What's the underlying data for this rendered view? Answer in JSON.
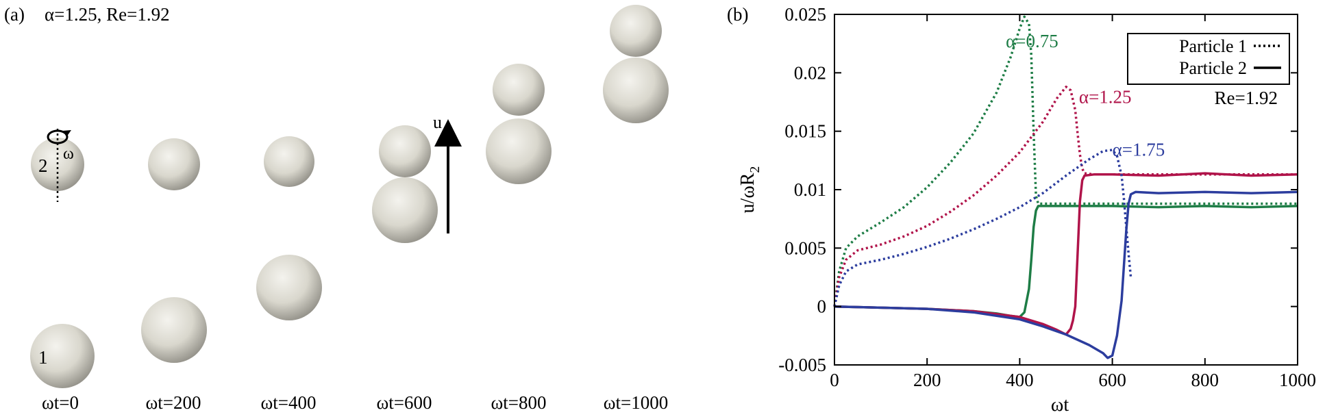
{
  "panel_a": {
    "label": "(a)",
    "params": "α=1.25, Re=1.92",
    "particle1_label": "1",
    "particle2_label": "2",
    "omega_label": "ω",
    "u_label": "u",
    "time_labels": [
      "ωt=0",
      "ωt=200",
      "ωt=400",
      "ωt=600",
      "ωt=800",
      "ωt=1000"
    ],
    "sphere_color": "#e4e2da"
  },
  "chart_data": {
    "type": "line",
    "label": "(b)",
    "xlabel": "ωt",
    "ylabel": "u/ωR",
    "ylabel_sub": "2",
    "xlim": [
      0,
      1000
    ],
    "ylim": [
      -0.005,
      0.025
    ],
    "xticks": [
      0,
      200,
      400,
      600,
      800,
      1000
    ],
    "yticks": [
      -0.005,
      0,
      0.005,
      0.01,
      0.015,
      0.02,
      0.025
    ],
    "ytick_labels": [
      "-0.005",
      "0",
      "0.005",
      "0.01",
      "0.015",
      "0.02",
      "0.025"
    ],
    "grid": false,
    "legend": {
      "placement": "top-right",
      "entries": [
        {
          "label": "Particle 1",
          "style": "dotted"
        },
        {
          "label": "Particle 2",
          "style": "solid"
        }
      ]
    },
    "annotation": "Re=1.92",
    "series": [
      {
        "name": "α=0.75",
        "color": "#1e7d46",
        "particle": 1,
        "style": "dotted",
        "x": [
          0,
          10,
          25,
          50,
          100,
          150,
          200,
          250,
          300,
          350,
          380,
          400,
          410,
          420,
          425,
          430,
          435,
          440,
          460,
          500,
          600,
          700,
          800,
          900,
          1000
        ],
        "y": [
          0.0,
          0.003,
          0.005,
          0.006,
          0.0072,
          0.0085,
          0.0102,
          0.0123,
          0.0148,
          0.0183,
          0.0213,
          0.0238,
          0.0248,
          0.0242,
          0.0215,
          0.015,
          0.0095,
          0.0088,
          0.0088,
          0.0088,
          0.0088,
          0.0088,
          0.0088,
          0.0088,
          0.0088
        ]
      },
      {
        "name": "α=0.75",
        "color": "#1e7d46",
        "particle": 2,
        "style": "solid",
        "x": [
          0,
          100,
          200,
          300,
          350,
          380,
          400,
          410,
          420,
          425,
          430,
          435,
          440,
          460,
          500,
          600,
          700,
          800,
          900,
          1000
        ],
        "y": [
          0.0,
          -0.0001,
          -0.0002,
          -0.0004,
          -0.0006,
          -0.0008,
          -0.0009,
          -0.0005,
          0.0015,
          0.004,
          0.0068,
          0.0082,
          0.0086,
          0.0086,
          0.0086,
          0.0086,
          0.0085,
          0.0086,
          0.0085,
          0.0086
        ]
      },
      {
        "name": "α=1.25",
        "color": "#b0144a",
        "particle": 1,
        "style": "dotted",
        "x": [
          0,
          10,
          25,
          50,
          100,
          150,
          200,
          250,
          300,
          350,
          400,
          450,
          480,
          500,
          510,
          520,
          525,
          530,
          535,
          540,
          560,
          600,
          700,
          800,
          900,
          1000
        ],
        "y": [
          0.0,
          0.0025,
          0.004,
          0.0048,
          0.0053,
          0.006,
          0.0069,
          0.0081,
          0.0095,
          0.0112,
          0.0132,
          0.0158,
          0.0178,
          0.0188,
          0.0185,
          0.0168,
          0.0148,
          0.013,
          0.0118,
          0.0114,
          0.0113,
          0.0113,
          0.0113,
          0.0113,
          0.0113,
          0.0113
        ]
      },
      {
        "name": "α=1.25",
        "color": "#b0144a",
        "particle": 2,
        "style": "solid",
        "x": [
          0,
          100,
          200,
          300,
          400,
          450,
          480,
          500,
          510,
          515,
          520,
          525,
          530,
          535,
          540,
          560,
          600,
          700,
          800,
          900,
          1000
        ],
        "y": [
          0.0,
          -0.0001,
          -0.0002,
          -0.0004,
          -0.0009,
          -0.0015,
          -0.002,
          -0.0024,
          -0.0019,
          -0.0012,
          0.0,
          0.0045,
          0.009,
          0.0108,
          0.0112,
          0.0113,
          0.0113,
          0.0112,
          0.0114,
          0.0112,
          0.0113
        ]
      },
      {
        "name": "α=1.75",
        "color": "#2c3d9e",
        "particle": 1,
        "style": "dotted",
        "x": [
          0,
          10,
          25,
          50,
          100,
          150,
          200,
          250,
          300,
          350,
          400,
          450,
          500,
          550,
          580,
          600,
          610,
          620,
          625,
          630,
          635,
          640
        ],
        "y": [
          0.0,
          0.0018,
          0.003,
          0.0036,
          0.004,
          0.0045,
          0.0051,
          0.0058,
          0.0066,
          0.0075,
          0.0085,
          0.0097,
          0.0112,
          0.0126,
          0.0133,
          0.0134,
          0.0129,
          0.0112,
          0.0092,
          0.0068,
          0.0045,
          0.0025
        ]
      },
      {
        "name": "α=1.75",
        "color": "#2c3d9e",
        "particle": 2,
        "style": "solid",
        "x": [
          0,
          100,
          200,
          300,
          400,
          450,
          500,
          550,
          580,
          590,
          600,
          610,
          620,
          625,
          630,
          635,
          640,
          650,
          700,
          800,
          900,
          1000
        ],
        "y": [
          0.0,
          -0.0001,
          -0.0002,
          -0.0005,
          -0.0011,
          -0.0017,
          -0.0024,
          -0.0033,
          -0.004,
          -0.0044,
          -0.0042,
          -0.0025,
          0.0005,
          0.0035,
          0.0065,
          0.0088,
          0.0096,
          0.0098,
          0.0097,
          0.0098,
          0.0097,
          0.0098
        ]
      }
    ],
    "series_labels": [
      {
        "text": "α=0.75",
        "color": "#1e7d46",
        "x": 370,
        "y": 0.0222
      },
      {
        "text": "α=1.25",
        "color": "#b0144a",
        "x": 528,
        "y": 0.0174
      },
      {
        "text": "α=1.75",
        "color": "#2c3d9e",
        "x": 600,
        "y": 0.0129
      }
    ]
  }
}
